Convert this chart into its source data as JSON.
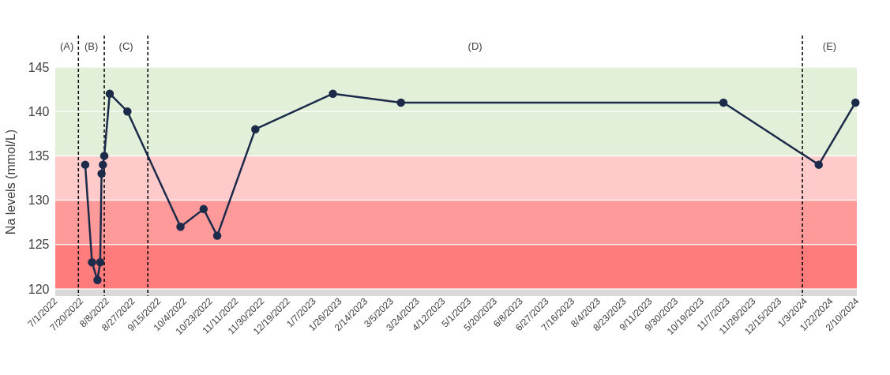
{
  "chart_data": {
    "type": "line",
    "ylabel": "Na levels (mmol/L)",
    "x": [
      "2022-07-23",
      "2022-07-28",
      "2022-08-01",
      "2022-08-03",
      "2022-08-04",
      "2022-08-05",
      "2022-08-06",
      "2022-08-10",
      "2022-08-23",
      "2022-10-01",
      "2022-10-18",
      "2022-10-28",
      "2022-11-25",
      "2023-01-21",
      "2023-03-12",
      "2023-11-04",
      "2024-01-13",
      "2024-02-09"
    ],
    "series": [
      {
        "color": "#1c2b4a",
        "values": [
          134,
          123,
          121,
          123,
          133,
          134,
          135,
          142,
          140,
          127,
          129,
          126,
          138,
          142,
          141,
          141,
          134,
          141
        ]
      }
    ],
    "marker": "circle",
    "line_style": "solid",
    "ylim": [
      119.2,
      145
    ],
    "yticks": [
      120,
      125,
      130,
      135,
      140,
      145
    ],
    "xlim": [
      "2022-07-01",
      "2024-02-10"
    ],
    "xticks": [
      {
        "value": "2022-07-01",
        "label": "7/1/2022"
      },
      {
        "value": "2022-07-20",
        "label": "7/20/2022"
      },
      {
        "value": "2022-08-08",
        "label": "8/8/2022"
      },
      {
        "value": "2022-08-27",
        "label": "8/27/2022"
      },
      {
        "value": "2022-09-15",
        "label": "9/15/2022"
      },
      {
        "value": "2022-10-04",
        "label": "10/4/2022"
      },
      {
        "value": "2022-10-23",
        "label": "10/23/2022"
      },
      {
        "value": "2022-11-11",
        "label": "11/11/2022"
      },
      {
        "value": "2022-11-30",
        "label": "11/30/2022"
      },
      {
        "value": "2022-12-19",
        "label": "12/19/2022"
      },
      {
        "value": "2023-01-07",
        "label": "1/7/2023"
      },
      {
        "value": "2023-01-26",
        "label": "1/26/2023"
      },
      {
        "value": "2023-02-14",
        "label": "2/14/2023"
      },
      {
        "value": "2023-03-05",
        "label": "3/5/2023"
      },
      {
        "value": "2023-03-24",
        "label": "3/24/2023"
      },
      {
        "value": "2023-04-12",
        "label": "4/12/2023"
      },
      {
        "value": "2023-05-01",
        "label": "5/1/2023"
      },
      {
        "value": "2023-05-20",
        "label": "5/20/2023"
      },
      {
        "value": "2023-06-08",
        "label": "6/8/2023"
      },
      {
        "value": "2023-06-27",
        "label": "6/27/2023"
      },
      {
        "value": "2023-07-16",
        "label": "7/16/2023"
      },
      {
        "value": "2023-08-04",
        "label": "8/4/2023"
      },
      {
        "value": "2023-08-23",
        "label": "8/23/2023"
      },
      {
        "value": "2023-09-11",
        "label": "9/11/2023"
      },
      {
        "value": "2023-09-30",
        "label": "9/30/2023"
      },
      {
        "value": "2023-10-19",
        "label": "10/19/2023"
      },
      {
        "value": "2023-11-07",
        "label": "11/7/2023"
      },
      {
        "value": "2023-11-26",
        "label": "11/26/2023"
      },
      {
        "value": "2023-12-15",
        "label": "12/15/2023"
      },
      {
        "value": "2024-01-03",
        "label": "1/3/2024"
      },
      {
        "value": "2024-01-22",
        "label": "1/22/2024"
      },
      {
        "value": "2024-02-10",
        "label": "2/10/2024"
      }
    ],
    "bands": [
      {
        "axis": "y",
        "from": 119.2,
        "to": 120,
        "color": "#d9d9d9"
      },
      {
        "axis": "y",
        "from": 120,
        "to": 125,
        "color": "#ff7c7c"
      },
      {
        "axis": "y",
        "from": 125,
        "to": 130,
        "color": "#ff9a9a"
      },
      {
        "axis": "y",
        "from": 130,
        "to": 135,
        "color": "#ffcaca"
      },
      {
        "axis": "y",
        "from": 135,
        "to": 145,
        "color": "#e3f0d9"
      }
    ],
    "ref_lines": [
      {
        "axis": "x",
        "value": "2022-07-18",
        "line_style": "dashed",
        "color": "#000000"
      },
      {
        "axis": "x",
        "value": "2022-08-06",
        "line_style": "dashed",
        "color": "#000000"
      },
      {
        "axis": "x",
        "value": "2022-09-07",
        "line_style": "dashed",
        "color": "#000000"
      },
      {
        "axis": "x",
        "value": "2024-01-01",
        "line_style": "dashed",
        "color": "#000000"
      }
    ],
    "annotations": [
      "(A)",
      "(B)",
      "(C)",
      "(D)",
      "(E)"
    ],
    "grid": "y"
  }
}
